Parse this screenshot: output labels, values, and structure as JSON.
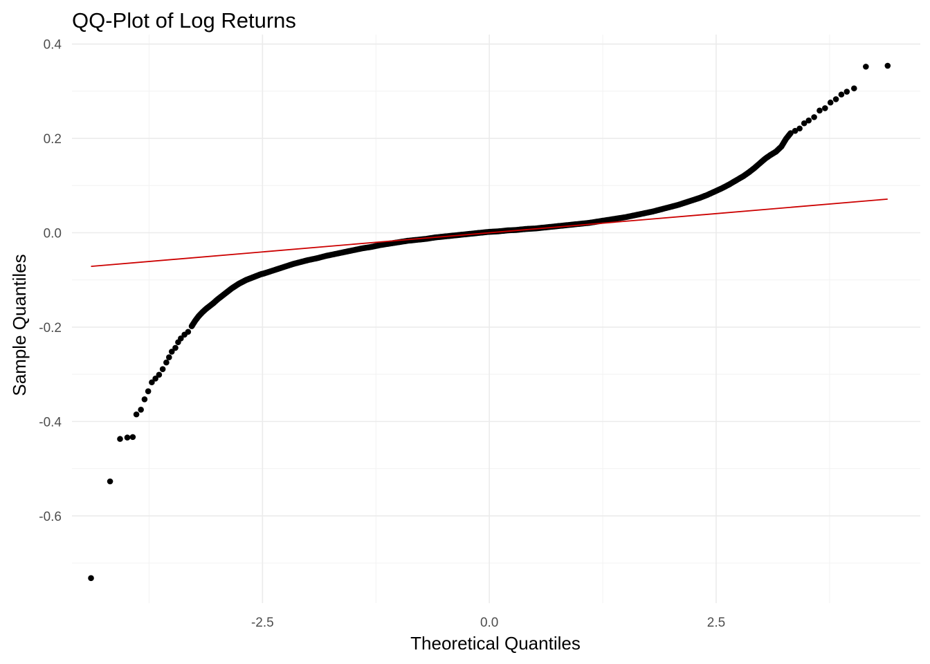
{
  "chart_data": {
    "type": "scatter",
    "title": "QQ-Plot of Log Returns",
    "xlabel": "Theoretical Quantiles",
    "ylabel": "Sample Quantiles",
    "xlim": [
      -4.6,
      4.75
    ],
    "ylim": [
      -0.785,
      0.42
    ],
    "x_ticks": [
      -2.5,
      0.0,
      2.5
    ],
    "x_tick_labels": [
      "-2.5",
      "0.0",
      "2.5"
    ],
    "y_ticks": [
      -0.6,
      -0.4,
      -0.2,
      0.0,
      0.2,
      0.4
    ],
    "y_tick_labels": [
      "-0.6",
      "-0.4",
      "-0.2",
      "0.0",
      "0.2",
      "0.4"
    ],
    "grid": true,
    "point_color": "#000000",
    "line_color": "#cc0000",
    "reference_line": {
      "x": [
        -4.39,
        4.39
      ],
      "y": [
        -0.0713,
        0.0713
      ]
    },
    "points": [
      [
        -4.39,
        -0.732
      ],
      [
        -4.18,
        -0.527
      ],
      [
        -4.07,
        -0.437
      ],
      [
        -3.99,
        -0.434
      ],
      [
        -3.93,
        -0.433
      ],
      [
        -3.89,
        -0.385
      ],
      [
        -3.84,
        -0.375
      ],
      [
        -3.8,
        -0.353
      ],
      [
        -3.76,
        -0.336
      ],
      [
        -3.72,
        -0.317
      ],
      [
        -3.68,
        -0.309
      ],
      [
        -3.64,
        -0.301
      ],
      [
        -3.6,
        -0.289
      ],
      [
        -3.56,
        -0.275
      ],
      [
        -3.53,
        -0.264
      ],
      [
        -3.5,
        -0.252
      ],
      [
        -3.46,
        -0.244
      ],
      [
        -3.43,
        -0.232
      ],
      [
        -3.4,
        -0.224
      ],
      [
        -3.36,
        -0.216
      ],
      [
        -3.32,
        -0.21
      ],
      [
        -3.28,
        -0.198
      ],
      [
        -3.24,
        -0.186
      ],
      [
        -3.2,
        -0.176
      ],
      [
        -3.16,
        -0.168
      ],
      [
        -3.12,
        -0.161
      ],
      [
        -3.08,
        -0.155
      ],
      [
        -3.04,
        -0.149
      ],
      [
        -3.0,
        -0.142
      ],
      [
        -2.96,
        -0.136
      ],
      [
        -2.92,
        -0.13
      ],
      [
        -2.88,
        -0.124
      ],
      [
        -2.84,
        -0.118
      ],
      [
        -2.8,
        -0.113
      ],
      [
        -2.76,
        -0.108
      ],
      [
        -2.72,
        -0.104
      ],
      [
        -2.68,
        -0.1
      ],
      [
        -2.64,
        -0.097
      ],
      [
        -2.6,
        -0.094
      ],
      [
        -2.56,
        -0.091
      ],
      [
        -2.52,
        -0.088
      ],
      [
        -2.48,
        -0.086
      ],
      [
        -2.4,
        -0.081
      ],
      [
        -2.32,
        -0.076
      ],
      [
        -2.24,
        -0.071
      ],
      [
        -2.16,
        -0.066
      ],
      [
        -2.08,
        -0.062
      ],
      [
        -2.0,
        -0.058
      ],
      [
        -1.9,
        -0.054
      ],
      [
        -1.8,
        -0.049
      ],
      [
        -1.7,
        -0.045
      ],
      [
        -1.6,
        -0.041
      ],
      [
        -1.5,
        -0.037
      ],
      [
        -1.4,
        -0.033
      ],
      [
        -1.3,
        -0.03
      ],
      [
        -1.2,
        -0.026
      ],
      [
        -1.1,
        -0.023
      ],
      [
        -1.0,
        -0.02
      ],
      [
        -0.9,
        -0.017
      ],
      [
        -0.8,
        -0.015
      ],
      [
        -0.7,
        -0.013
      ],
      [
        -0.6,
        -0.01
      ],
      [
        -0.5,
        -0.008
      ],
      [
        -0.4,
        -0.006
      ],
      [
        -0.3,
        -0.004
      ],
      [
        -0.2,
        -0.002
      ],
      [
        -0.1,
        0.0
      ],
      [
        0.0,
        0.002
      ],
      [
        0.1,
        0.003
      ],
      [
        0.2,
        0.005
      ],
      [
        0.3,
        0.006
      ],
      [
        0.4,
        0.008
      ],
      [
        0.5,
        0.009
      ],
      [
        0.6,
        0.011
      ],
      [
        0.7,
        0.013
      ],
      [
        0.8,
        0.015
      ],
      [
        0.9,
        0.017
      ],
      [
        1.0,
        0.019
      ],
      [
        1.1,
        0.021
      ],
      [
        1.2,
        0.024
      ],
      [
        1.3,
        0.027
      ],
      [
        1.4,
        0.03
      ],
      [
        1.5,
        0.033
      ],
      [
        1.6,
        0.037
      ],
      [
        1.7,
        0.041
      ],
      [
        1.8,
        0.045
      ],
      [
        1.9,
        0.05
      ],
      [
        2.0,
        0.055
      ],
      [
        2.08,
        0.059
      ],
      [
        2.16,
        0.064
      ],
      [
        2.24,
        0.069
      ],
      [
        2.32,
        0.074
      ],
      [
        2.4,
        0.08
      ],
      [
        2.48,
        0.087
      ],
      [
        2.56,
        0.094
      ],
      [
        2.64,
        0.102
      ],
      [
        2.72,
        0.111
      ],
      [
        2.8,
        0.12
      ],
      [
        2.86,
        0.128
      ],
      [
        2.92,
        0.137
      ],
      [
        2.98,
        0.147
      ],
      [
        3.04,
        0.157
      ],
      [
        3.1,
        0.165
      ],
      [
        3.16,
        0.172
      ],
      [
        3.22,
        0.183
      ],
      [
        3.27,
        0.199
      ],
      [
        3.32,
        0.211
      ],
      [
        3.37,
        0.216
      ],
      [
        3.42,
        0.221
      ],
      [
        3.47,
        0.232
      ],
      [
        3.52,
        0.238
      ],
      [
        3.58,
        0.245
      ],
      [
        3.64,
        0.259
      ],
      [
        3.7,
        0.264
      ],
      [
        3.76,
        0.276
      ],
      [
        3.82,
        0.283
      ],
      [
        3.88,
        0.293
      ],
      [
        3.94,
        0.299
      ],
      [
        4.02,
        0.306
      ],
      [
        4.15,
        0.352
      ],
      [
        4.39,
        0.354
      ]
    ]
  }
}
